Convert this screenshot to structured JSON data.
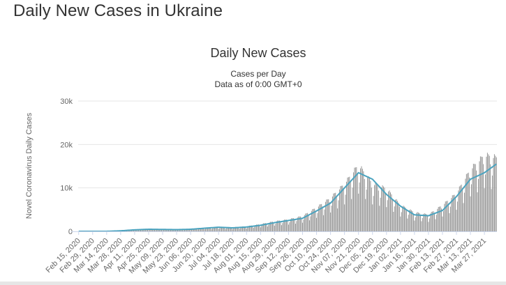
{
  "page": {
    "title": "Daily New Cases in Ukraine"
  },
  "chart_data": {
    "type": "bar",
    "title": "Daily New Cases",
    "subtitle_lines": [
      "Cases per Day",
      "Data as of 0:00 GMT+0"
    ],
    "ylabel": "Novel Coronavirus Daily Cases",
    "xlabel": "",
    "ylim": [
      0,
      30000
    ],
    "yticks": [
      0,
      10000,
      20000,
      30000
    ],
    "ytick_labels": [
      "0",
      "10k",
      "20k",
      "30k"
    ],
    "xtick_labels": [
      "Feb 15, 2020",
      "Feb 29, 2020",
      "Mar 14, 2020",
      "Mar 28, 2020",
      "Apr 11, 2020",
      "Apr 25, 2020",
      "May 09, 2020",
      "May 23, 2020",
      "Jun 06, 2020",
      "Jun 20, 2020",
      "Jul 04, 2020",
      "Jul 18, 2020",
      "Aug 01, 2020",
      "Aug 15, 2020",
      "Aug 29, 2020",
      "Sep 12, 2020",
      "Sep 26, 2020",
      "Oct 10, 2020",
      "Oct 24, 2020",
      "Nov 07, 2020",
      "Nov 21, 2020",
      "Dec 05, 2020",
      "Dec 19, 2020",
      "Jan 02, 2021",
      "Jan 16, 2021",
      "Jan 30, 2021",
      "Feb 13, 2021",
      "Feb 27, 2021",
      "Mar 13, 2021",
      "Mar 27, 2021"
    ],
    "x_start": "Feb 15, 2020",
    "x_end": "Apr 08, 2021",
    "grid": true,
    "colors": {
      "bars": "#999999",
      "average_line": "#4aa3bf",
      "grid": "#e6e6e6",
      "axis": "#ccd6eb"
    },
    "series": [
      {
        "type": "bar",
        "values_every_14_days": [
          0,
          0,
          3,
          150,
          400,
          470,
          450,
          380,
          500,
          780,
          900,
          850,
          1050,
          1500,
          2100,
          2500,
          3200,
          5000,
          7000,
          10000,
          14000,
          10000,
          9000,
          5500,
          4000,
          3500,
          5500,
          8000,
          13000,
          16000
        ],
        "last_value": 15500
      },
      {
        "type": "line",
        "values_every_14_days": [
          0,
          0,
          5,
          120,
          350,
          480,
          440,
          400,
          480,
          720,
          950,
          800,
          1000,
          1400,
          2000,
          2500,
          3000,
          4700,
          6500,
          10000,
          13500,
          12000,
          8500,
          5800,
          3800,
          3600,
          4800,
          8000,
          12000,
          13500
        ],
        "last_value": 15500
      }
    ]
  }
}
